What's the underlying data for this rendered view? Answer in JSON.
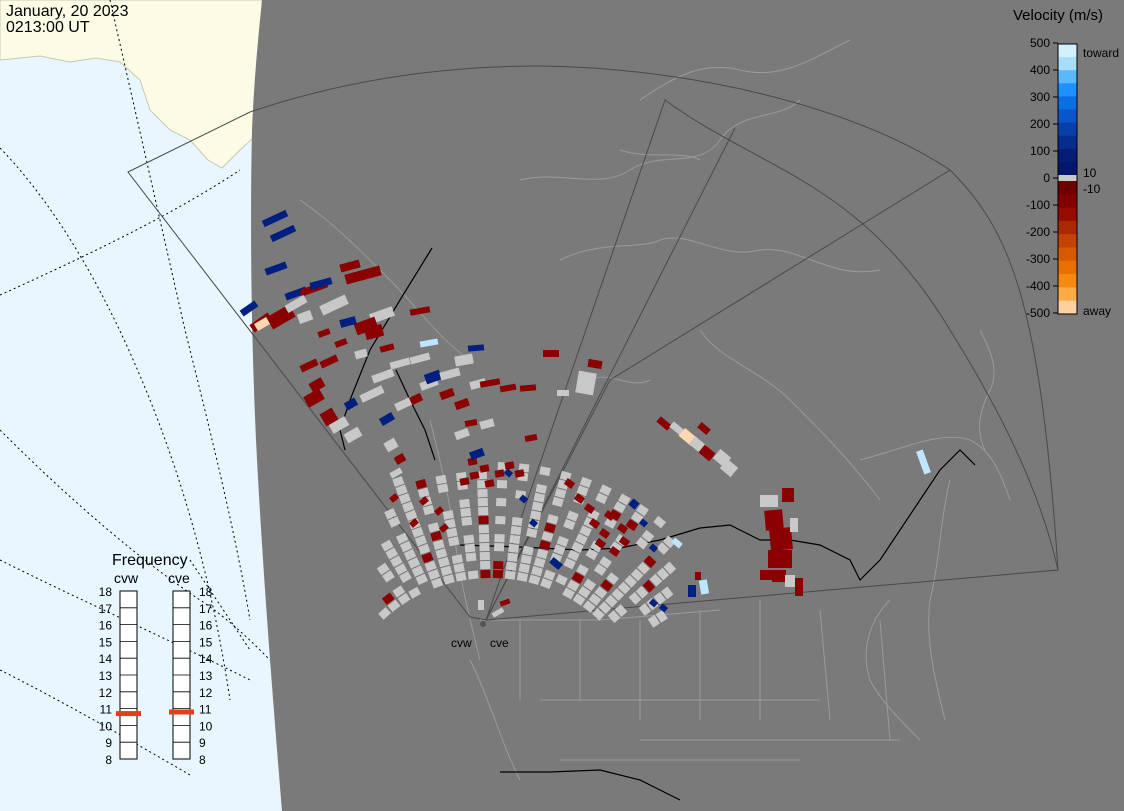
{
  "header": {
    "date": "January, 20 2023",
    "time": "0213:00 UT"
  },
  "colorbar": {
    "title": "Velocity (m/s)",
    "ticks": [
      "500",
      "400",
      "300",
      "200",
      "100",
      "0",
      "-100",
      "-200",
      "-300",
      "-400",
      "-500"
    ],
    "tick_values": [
      500,
      400,
      300,
      200,
      100,
      0,
      -100,
      -200,
      -300,
      -400,
      -500
    ],
    "side_labels": {
      "toward": "toward",
      "away": "away",
      "plus_threshold": "10",
      "minus_threshold": "-10"
    },
    "colors": {
      "toward": [
        "#d2f0ff",
        "#a8dcff",
        "#5ab8ff",
        "#1e90ff",
        "#0a6fe0",
        "#0a56c8",
        "#083fa8",
        "#062c8c",
        "#041e78",
        "#03166c"
      ],
      "away": [
        "#6e0000",
        "#820000",
        "#960c00",
        "#aa2a00",
        "#c24400",
        "#d85a00",
        "#e87000",
        "#f58a10",
        "#ffaa44",
        "#ffd0a0"
      ],
      "ground_scatter": "#c8c8c8"
    }
  },
  "frequency_panel": {
    "title": "Frequency",
    "radars": [
      "cvw",
      "cve"
    ],
    "scale": [
      "18",
      "17",
      "16",
      "15",
      "14",
      "13",
      "12",
      "11",
      "10",
      "9",
      "8"
    ],
    "scale_values": [
      18,
      17,
      16,
      15,
      14,
      13,
      12,
      11,
      10,
      9,
      8
    ],
    "current_mhz": {
      "cvw": 10.7,
      "cve": 10.8
    },
    "marker_color": "#e0401a"
  },
  "map": {
    "radar_labels": [
      "cvw",
      "cve"
    ],
    "colors": {
      "night": "#7a7a7a",
      "day_ocean": "#e8f6ff",
      "day_land": "#fcfbe6",
      "coast": "#9a9a9a",
      "border": "#000000",
      "fov": "#4a4a4a"
    }
  }
}
